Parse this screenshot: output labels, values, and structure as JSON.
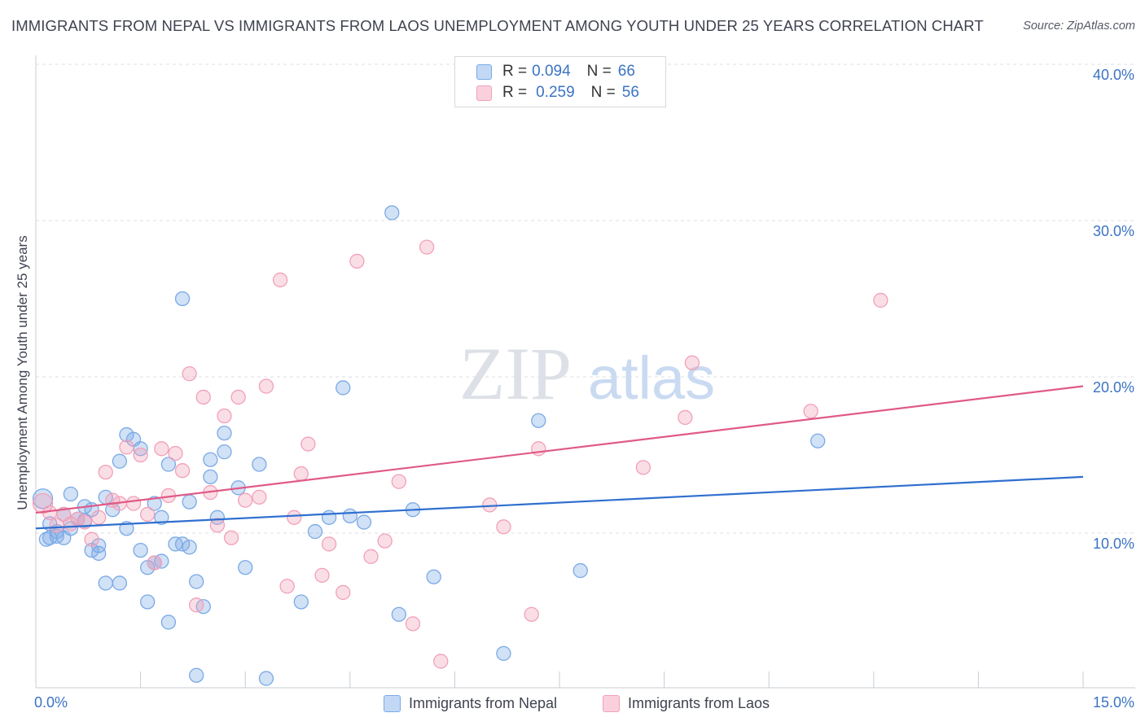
{
  "title": "IMMIGRANTS FROM NEPAL VS IMMIGRANTS FROM LAOS UNEMPLOYMENT AMONG YOUTH UNDER 25 YEARS CORRELATION CHART",
  "source": "Source: ZipAtlas.com",
  "watermark": {
    "zip": "ZIP",
    "atlas": "atlas"
  },
  "legend": {
    "r_label": "R =",
    "n_label": "N =",
    "items": [
      {
        "r": "0.094",
        "n": "66"
      },
      {
        "r": "0.259",
        "n": "56"
      }
    ]
  },
  "chart_data": {
    "type": "scatter",
    "title": "IMMIGRANTS FROM NEPAL VS IMMIGRANTS FROM LAOS UNEMPLOYMENT AMONG YOUTH UNDER 25 YEARS CORRELATION CHART",
    "xlabel": "",
    "ylabel": "Unemployment Among Youth under 25 years",
    "xlim": [
      0,
      15
    ],
    "ylim": [
      0,
      40
    ],
    "x_tick_labels": [
      "0.0%",
      "15.0%"
    ],
    "y_ticks": [
      10,
      20,
      30,
      40
    ],
    "y_tick_labels": [
      "10.0%",
      "20.0%",
      "30.0%",
      "40.0%"
    ],
    "grid": true,
    "legend_position": "top-center",
    "series": [
      {
        "name": "Immigrants from Nepal",
        "color": "#7aaae6",
        "line_color": "#2f6fcf",
        "r": 0.094,
        "n": 66,
        "trend": {
          "x": [
            0,
            15
          ],
          "y": [
            10.3,
            13.6
          ]
        },
        "points": [
          [
            0.1,
            12.2
          ],
          [
            0.2,
            10.6
          ],
          [
            0.2,
            9.7
          ],
          [
            0.3,
            10.1
          ],
          [
            0.3,
            9.8
          ],
          [
            0.4,
            11.2
          ],
          [
            0.4,
            9.7
          ],
          [
            0.5,
            12.5
          ],
          [
            0.5,
            10.3
          ],
          [
            0.6,
            10.9
          ],
          [
            0.7,
            10.8
          ],
          [
            0.7,
            11.7
          ],
          [
            0.8,
            8.9
          ],
          [
            0.8,
            11.5
          ],
          [
            0.9,
            8.7
          ],
          [
            0.9,
            9.2
          ],
          [
            1.0,
            6.8
          ],
          [
            1.0,
            12.3
          ],
          [
            1.1,
            11.5
          ],
          [
            1.2,
            14.6
          ],
          [
            1.2,
            6.8
          ],
          [
            1.3,
            16.3
          ],
          [
            1.3,
            10.3
          ],
          [
            1.4,
            16.0
          ],
          [
            1.5,
            15.4
          ],
          [
            1.5,
            8.9
          ],
          [
            1.6,
            5.6
          ],
          [
            1.6,
            7.8
          ],
          [
            1.7,
            8.1
          ],
          [
            1.7,
            11.9
          ],
          [
            1.8,
            8.2
          ],
          [
            1.8,
            11.0
          ],
          [
            1.9,
            14.4
          ],
          [
            1.9,
            4.3
          ],
          [
            2.0,
            9.3
          ],
          [
            2.1,
            9.3
          ],
          [
            2.1,
            25.0
          ],
          [
            2.2,
            12.0
          ],
          [
            2.2,
            9.1
          ],
          [
            2.3,
            0.9
          ],
          [
            2.3,
            6.9
          ],
          [
            2.4,
            5.3
          ],
          [
            2.5,
            13.6
          ],
          [
            2.5,
            14.7
          ],
          [
            2.6,
            11.0
          ],
          [
            2.7,
            16.4
          ],
          [
            2.7,
            15.2
          ],
          [
            2.9,
            12.9
          ],
          [
            3.0,
            7.8
          ],
          [
            3.2,
            14.4
          ],
          [
            3.3,
            0.7
          ],
          [
            3.8,
            5.6
          ],
          [
            4.0,
            10.1
          ],
          [
            4.2,
            11.0
          ],
          [
            4.4,
            19.3
          ],
          [
            4.5,
            11.1
          ],
          [
            4.7,
            10.7
          ],
          [
            5.1,
            30.5
          ],
          [
            5.2,
            4.8
          ],
          [
            5.4,
            11.5
          ],
          [
            5.7,
            7.2
          ],
          [
            6.7,
            2.3
          ],
          [
            7.2,
            17.2
          ],
          [
            7.8,
            7.6
          ],
          [
            11.2,
            15.9
          ],
          [
            0.15,
            9.6
          ]
        ]
      },
      {
        "name": "Immigrants from Laos",
        "color": "#f2a0b8",
        "line_color": "#e05a86",
        "r": 0.259,
        "n": 56,
        "trend": {
          "x": [
            0,
            15
          ],
          "y": [
            11.3,
            19.4
          ]
        },
        "points": [
          [
            0.1,
            11.9
          ],
          [
            0.2,
            11.3
          ],
          [
            0.3,
            10.5
          ],
          [
            0.4,
            11.2
          ],
          [
            0.5,
            10.6
          ],
          [
            0.6,
            10.9
          ],
          [
            0.7,
            10.7
          ],
          [
            0.8,
            9.6
          ],
          [
            0.9,
            11.0
          ],
          [
            1.0,
            13.9
          ],
          [
            1.1,
            12.1
          ],
          [
            1.2,
            11.9
          ],
          [
            1.3,
            15.5
          ],
          [
            1.4,
            11.9
          ],
          [
            1.5,
            15.0
          ],
          [
            1.6,
            11.2
          ],
          [
            1.7,
            8.1
          ],
          [
            1.8,
            15.4
          ],
          [
            1.9,
            12.4
          ],
          [
            2.0,
            15.1
          ],
          [
            2.1,
            14.0
          ],
          [
            2.2,
            20.2
          ],
          [
            2.3,
            5.4
          ],
          [
            2.4,
            18.7
          ],
          [
            2.5,
            12.6
          ],
          [
            2.6,
            10.5
          ],
          [
            2.7,
            17.5
          ],
          [
            2.8,
            9.7
          ],
          [
            2.9,
            18.7
          ],
          [
            3.0,
            12.1
          ],
          [
            3.2,
            12.3
          ],
          [
            3.3,
            19.4
          ],
          [
            3.5,
            26.2
          ],
          [
            3.6,
            6.6
          ],
          [
            3.7,
            11.0
          ],
          [
            3.8,
            13.8
          ],
          [
            3.9,
            15.7
          ],
          [
            4.1,
            7.3
          ],
          [
            4.2,
            9.3
          ],
          [
            4.4,
            6.2
          ],
          [
            4.6,
            27.4
          ],
          [
            4.8,
            8.5
          ],
          [
            5.0,
            9.5
          ],
          [
            5.2,
            13.3
          ],
          [
            5.4,
            4.2
          ],
          [
            5.6,
            28.3
          ],
          [
            5.8,
            1.8
          ],
          [
            6.5,
            11.8
          ],
          [
            6.7,
            10.4
          ],
          [
            7.1,
            4.8
          ],
          [
            7.2,
            15.4
          ],
          [
            8.7,
            14.2
          ],
          [
            9.3,
            17.4
          ],
          [
            9.4,
            20.9
          ],
          [
            11.1,
            17.8
          ],
          [
            12.1,
            24.9
          ]
        ]
      }
    ]
  }
}
